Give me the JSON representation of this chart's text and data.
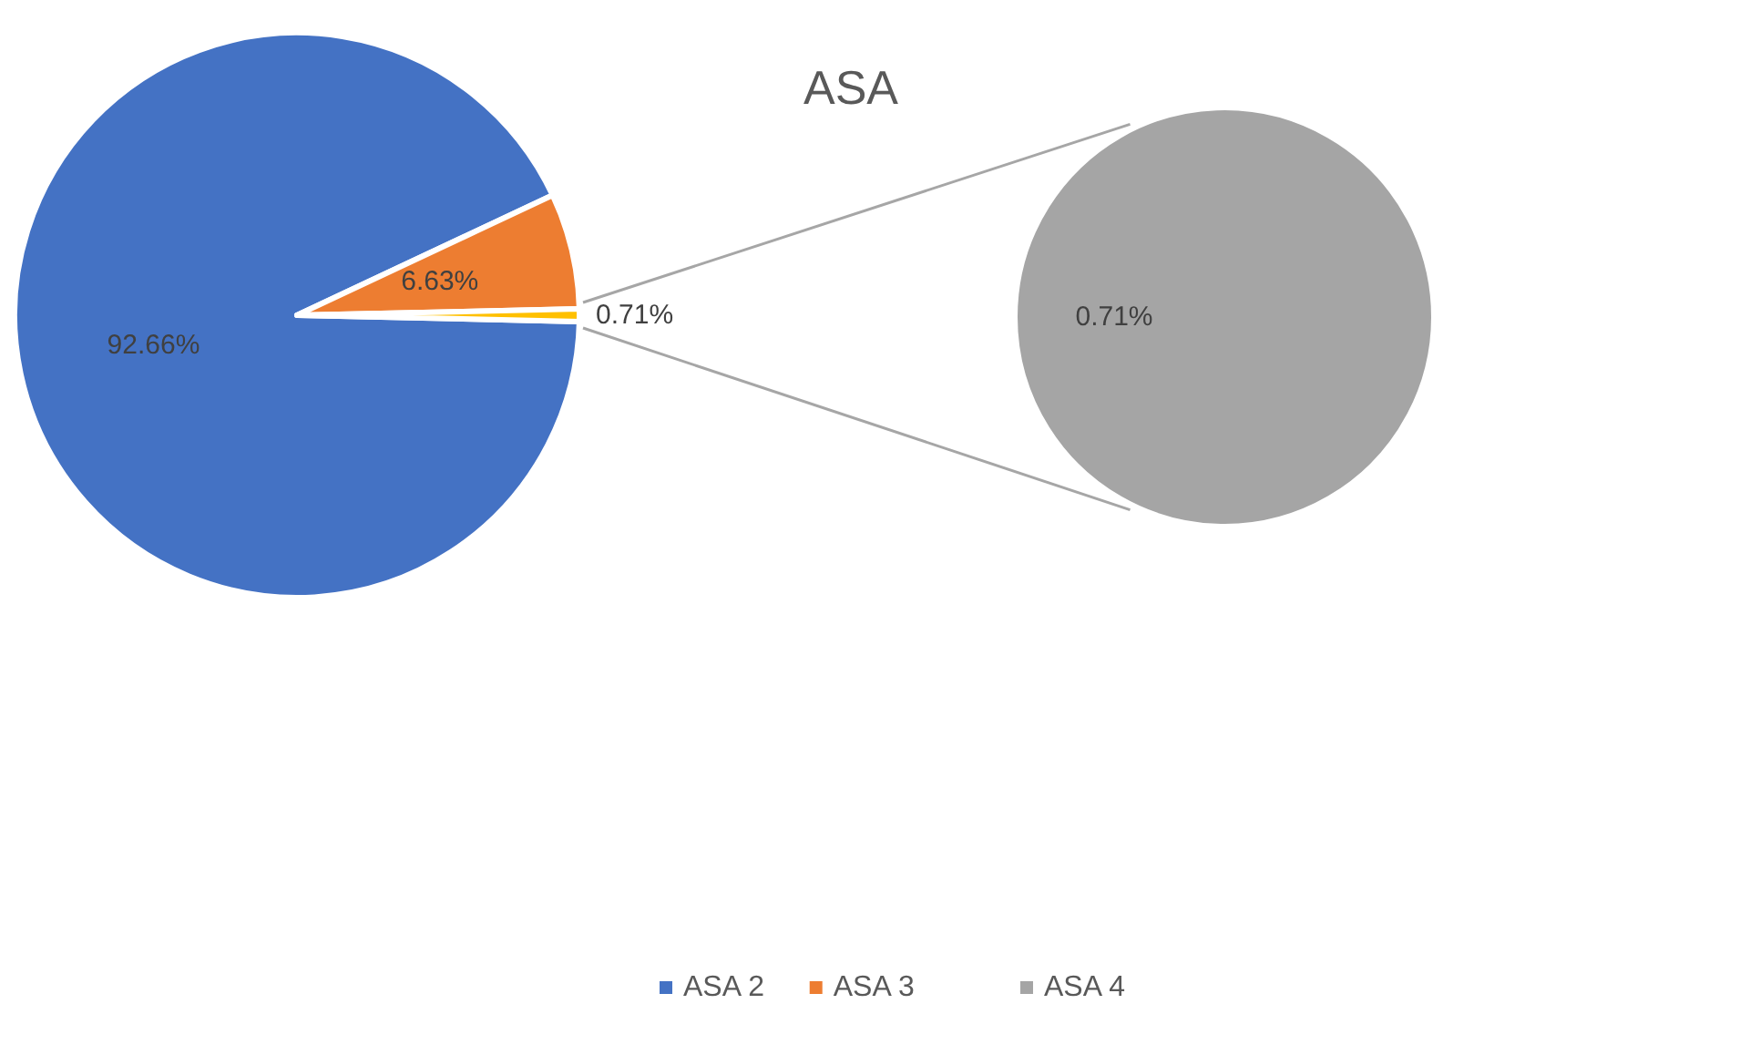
{
  "chart_data": [
    {
      "type": "pie",
      "title": "ASA",
      "categories": [
        "ASA 2",
        "ASA 3",
        null
      ],
      "values": [
        92.66,
        6.63,
        0.71
      ],
      "colors": [
        "#4472c4",
        "#ed7d31",
        "#ffc000"
      ],
      "value_labels": [
        "92.66%",
        "6.63%",
        "0.71%"
      ],
      "legend": "bottom"
    },
    {
      "type": "pie",
      "categories": [
        "ASA 4"
      ],
      "values": [
        0.71
      ],
      "colors": [
        "#a5a5a5"
      ],
      "value_labels": [
        "0.71%"
      ],
      "legend": "bottom"
    }
  ]
}
